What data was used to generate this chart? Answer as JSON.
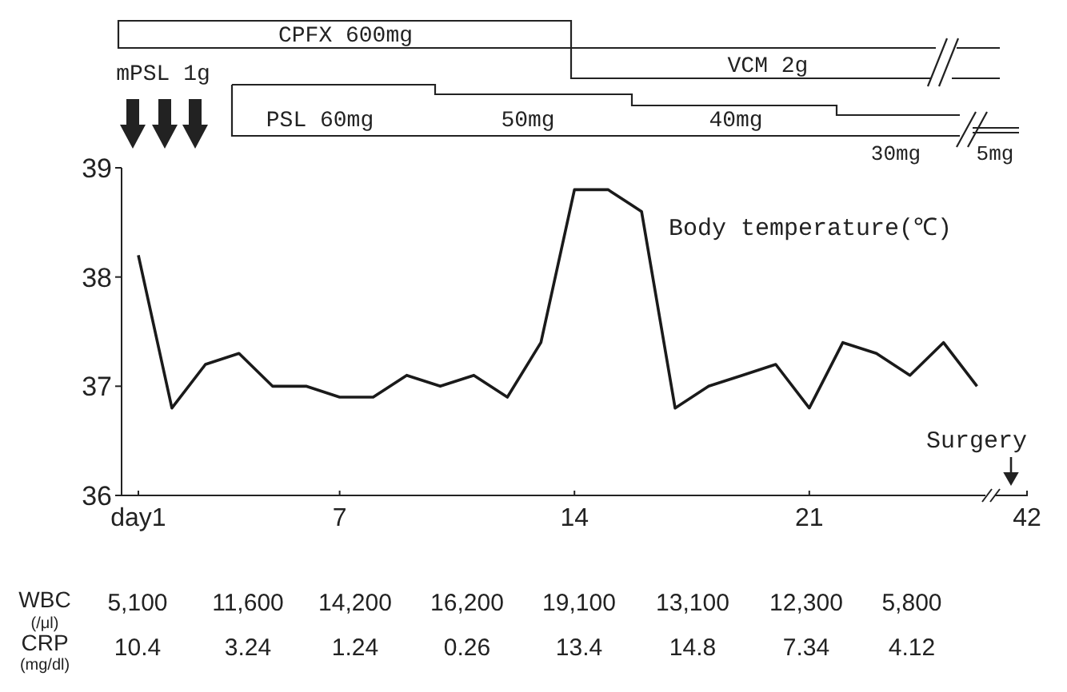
{
  "chart_data": {
    "type": "line",
    "x": [
      1,
      2,
      3,
      4,
      5,
      6,
      7,
      8,
      9,
      10,
      11,
      12,
      13,
      14,
      15,
      16,
      17,
      18,
      19,
      20,
      21,
      22,
      23,
      24,
      25,
      26
    ],
    "series": [
      {
        "name": "Body temperature(℃)",
        "color": "#1a1a1a",
        "values": [
          38.2,
          36.8,
          37.2,
          37.3,
          37.0,
          37.0,
          36.9,
          36.9,
          37.1,
          37.0,
          37.1,
          36.9,
          37.4,
          38.8,
          38.8,
          38.6,
          36.8,
          37.0,
          37.1,
          37.2,
          36.8,
          37.4,
          37.3,
          37.1,
          37.4,
          37.0
        ]
      }
    ],
    "xlim": [
      0.5,
      26.25
    ],
    "xticks": [
      {
        "value": 1,
        "label": "day1"
      },
      7,
      14,
      21
    ],
    "ylim": [
      36,
      39
    ],
    "yticks": [
      36,
      37,
      38,
      39
    ],
    "annotations": [
      "CPFX 600mg",
      "VCM 2g",
      "mPSL 1g",
      "PSL 60mg",
      "50mg",
      "40mg",
      "30mg",
      "5mg",
      "WBC",
      "(/μl)",
      "CRP",
      "(mg/dl)",
      "Surgery",
      "42",
      "5,100",
      "11,600",
      "14,200",
      "16,200",
      "19,100",
      "13,100",
      "12,300",
      "5,800",
      "10.4",
      "3.24",
      "1.24",
      "0.26",
      "13.4",
      "14.8",
      "7.34",
      "4.12"
    ]
  }
}
